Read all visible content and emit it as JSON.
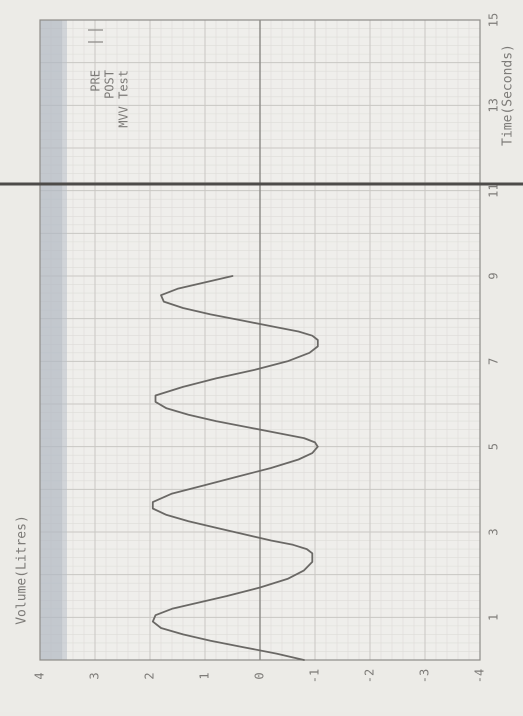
{
  "chart_data": {
    "type": "line",
    "title": "",
    "xlabel": "Time(Seconds)",
    "ylabel": "Volume(Litres)",
    "xlim": [
      0,
      15
    ],
    "ylim": [
      -4,
      4
    ],
    "x_ticks": [
      "1",
      "3",
      "5",
      "7",
      "9",
      "11",
      "13",
      "15"
    ],
    "y_ticks": [
      "4",
      "3",
      "2",
      "1",
      "0",
      "-1",
      "-2",
      "-3",
      "-4"
    ],
    "grid": true,
    "legend_position": "top-right",
    "legend": [
      "PRE",
      "POST",
      "MVV Test"
    ],
    "series": [
      {
        "name": "MVV Test",
        "color": "#6a6865",
        "x": [
          0.0,
          0.15,
          0.3,
          0.45,
          0.6,
          0.75,
          0.9,
          1.05,
          1.2,
          1.35,
          1.5,
          1.7,
          1.9,
          2.1,
          2.3,
          2.5,
          2.6,
          2.7,
          2.8,
          2.95,
          3.1,
          3.25,
          3.4,
          3.55,
          3.7,
          3.9,
          4.1,
          4.3,
          4.5,
          4.7,
          4.85,
          5.0,
          5.1,
          5.2,
          5.3,
          5.45,
          5.6,
          5.75,
          5.9,
          6.05,
          6.2,
          6.4,
          6.6,
          6.8,
          7.0,
          7.2,
          7.35,
          7.5,
          7.6,
          7.7,
          7.8,
          7.95,
          8.1,
          8.25,
          8.4,
          8.55,
          8.7,
          8.85,
          9.0
        ],
        "values": [
          -0.8,
          -0.3,
          0.3,
          0.9,
          1.4,
          1.8,
          1.95,
          1.9,
          1.6,
          1.1,
          0.6,
          0.0,
          -0.5,
          -0.8,
          -0.95,
          -0.95,
          -0.85,
          -0.6,
          -0.2,
          0.3,
          0.8,
          1.3,
          1.7,
          1.95,
          1.95,
          1.6,
          1.0,
          0.4,
          -0.2,
          -0.7,
          -0.95,
          -1.05,
          -1.0,
          -0.8,
          -0.4,
          0.2,
          0.8,
          1.3,
          1.7,
          1.9,
          1.9,
          1.4,
          0.8,
          0.1,
          -0.5,
          -0.9,
          -1.05,
          -1.05,
          -0.95,
          -0.7,
          -0.3,
          0.3,
          0.9,
          1.4,
          1.75,
          1.8,
          1.5,
          1.0,
          0.5
        ]
      }
    ]
  }
}
